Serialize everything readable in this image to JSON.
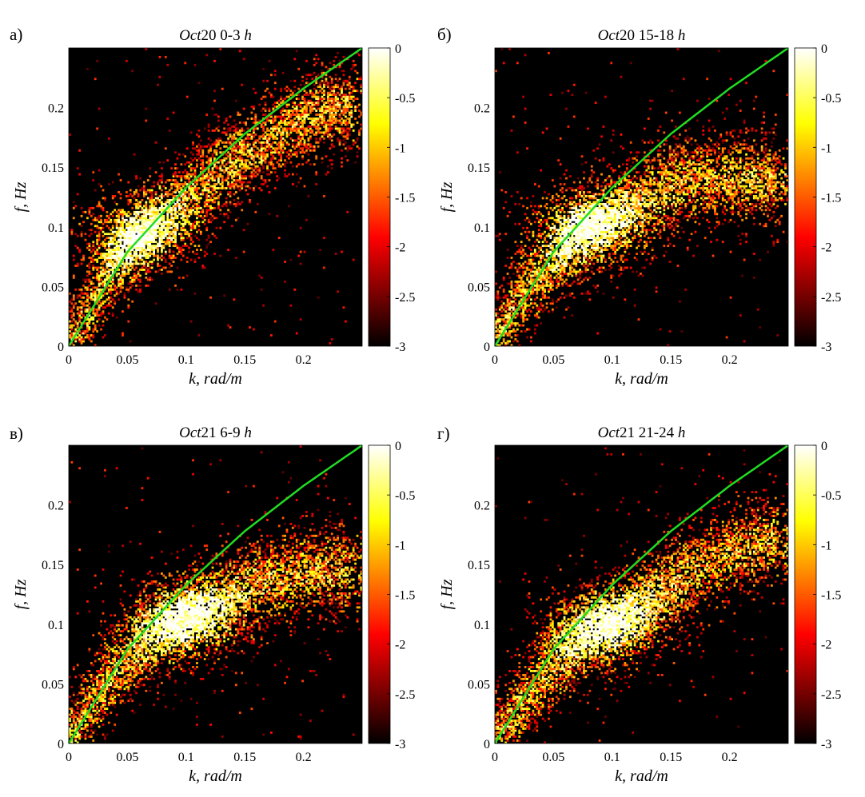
{
  "figure": {
    "panels": [
      {
        "letter": "а)",
        "title": "Oct20 0-3 h",
        "title_parts": {
          "italic1": "Oct",
          "roman": "20 0-3 ",
          "italic2": "h"
        },
        "xlabel": "k, rad/m",
        "ylabel": "f, Hz",
        "xticks": [
          "0",
          "0.05",
          "0.1",
          "0.15",
          "0.2"
        ],
        "yticks": [
          "0",
          "0.05",
          "0.1",
          "0.15",
          "0.2"
        ],
        "colorbar_ticks": [
          "0",
          "-0.5",
          "-1",
          "-1.5",
          "-2",
          "-2.5",
          "-3"
        ]
      },
      {
        "letter": "б)",
        "title": "Oct20 15-18 h",
        "title_parts": {
          "italic1": "Oct",
          "roman": "20 15-18 ",
          "italic2": "h"
        },
        "xlabel": "k, rad/m",
        "ylabel": "f, Hz",
        "xticks": [
          "0",
          "0.05",
          "0.1",
          "0.15",
          "0.2"
        ],
        "yticks": [
          "0",
          "0.05",
          "0.1",
          "0.15",
          "0.2"
        ],
        "colorbar_ticks": [
          "0",
          "-0.5",
          "-1",
          "-1.5",
          "-2",
          "-2.5",
          "-3"
        ]
      },
      {
        "letter": "в)",
        "title": "Oct21 6-9 h",
        "title_parts": {
          "italic1": "Oct",
          "roman": "21 6-9 ",
          "italic2": "h"
        },
        "xlabel": "k, rad/m",
        "ylabel": "f, Hz",
        "xticks": [
          "0",
          "0.05",
          "0.1",
          "0.15",
          "0.2"
        ],
        "yticks": [
          "0",
          "0.05",
          "0.1",
          "0.15",
          "0.2"
        ],
        "colorbar_ticks": [
          "0",
          "-0.5",
          "-1",
          "-1.5",
          "-2",
          "-2.5",
          "-3"
        ]
      },
      {
        "letter": "г)",
        "title": "Oct21 21-24 h",
        "title_parts": {
          "italic1": "Oct",
          "roman": "21 21-24 ",
          "italic2": "h"
        },
        "xlabel": "k, rad/m",
        "ylabel": "f, Hz",
        "xticks": [
          "0",
          "0.05",
          "0.1",
          "0.15",
          "0.2"
        ],
        "yticks": [
          "0",
          "0.05",
          "0.1",
          "0.15",
          "0.2"
        ],
        "colorbar_ticks": [
          "0",
          "-0.5",
          "-1",
          "-1.5",
          "-2",
          "-2.5",
          "-3"
        ]
      }
    ]
  },
  "chart_data": [
    {
      "type": "heatmap",
      "title": "Oct20 0-3 h",
      "xlabel": "k, rad/m",
      "ylabel": "f, Hz",
      "xlim": [
        0,
        0.25
      ],
      "ylim": [
        0,
        0.25
      ],
      "colorbar": {
        "range": [
          -3,
          0
        ],
        "colormap": "hot",
        "ticks": [
          0,
          -0.5,
          -1,
          -1.5,
          -2,
          -2.5,
          -3
        ]
      },
      "background_color": "#000000",
      "energy_ridge": {
        "x": [
          0.005,
          0.02,
          0.04,
          0.06,
          0.08,
          0.12,
          0.18,
          0.22
        ],
        "y": [
          0.005,
          0.035,
          0.07,
          0.09,
          0.11,
          0.14,
          0.18,
          0.2
        ]
      },
      "peak": {
        "x": 0.055,
        "y": 0.095
      },
      "dispersion_curve": {
        "name": "",
        "color": "#22dd22",
        "x": [
          0,
          0.05,
          0.1,
          0.15,
          0.2,
          0.25
        ],
        "y": [
          0,
          0.079,
          0.133,
          0.178,
          0.216,
          0.25
        ]
      }
    },
    {
      "type": "heatmap",
      "title": "Oct20 15-18 h",
      "xlabel": "k, rad/m",
      "ylabel": "f, Hz",
      "xlim": [
        0,
        0.25
      ],
      "ylim": [
        0,
        0.25
      ],
      "colorbar": {
        "range": [
          -3,
          0
        ],
        "colormap": "hot",
        "ticks": [
          0,
          -0.5,
          -1,
          -1.5,
          -2,
          -2.5,
          -3
        ]
      },
      "background_color": "#000000",
      "energy_ridge": {
        "x": [
          0.005,
          0.02,
          0.04,
          0.06,
          0.08,
          0.1,
          0.13,
          0.16
        ],
        "y": [
          0.01,
          0.04,
          0.06,
          0.08,
          0.1,
          0.11,
          0.125,
          0.14
        ]
      },
      "peak": {
        "x": 0.075,
        "y": 0.1
      },
      "dispersion_curve": {
        "name": "",
        "color": "#22dd22",
        "x": [
          0,
          0.05,
          0.1,
          0.15,
          0.2,
          0.25
        ],
        "y": [
          0,
          0.079,
          0.133,
          0.178,
          0.216,
          0.25
        ]
      }
    },
    {
      "type": "heatmap",
      "title": "Oct21 6-9 h",
      "xlabel": "k, rad/m",
      "ylabel": "f, Hz",
      "xlim": [
        0,
        0.25
      ],
      "ylim": [
        0,
        0.25
      ],
      "colorbar": {
        "range": [
          -3,
          0
        ],
        "colormap": "hot",
        "ticks": [
          0,
          -0.5,
          -1,
          -1.5,
          -2,
          -2.5,
          -3
        ]
      },
      "background_color": "#000000",
      "energy_ridge": {
        "x": [
          0.005,
          0.02,
          0.04,
          0.06,
          0.08,
          0.1,
          0.13,
          0.16,
          0.2
        ],
        "y": [
          0.01,
          0.035,
          0.06,
          0.08,
          0.095,
          0.105,
          0.12,
          0.135,
          0.145
        ]
      },
      "peak": {
        "x": 0.1,
        "y": 0.105
      },
      "dispersion_curve": {
        "name": "",
        "color": "#22dd22",
        "x": [
          0,
          0.05,
          0.1,
          0.15,
          0.2,
          0.25
        ],
        "y": [
          0,
          0.079,
          0.133,
          0.178,
          0.216,
          0.25
        ]
      }
    },
    {
      "type": "heatmap",
      "title": "Oct21 21-24 h",
      "xlabel": "k, rad/m",
      "ylabel": "f, Hz",
      "xlim": [
        0,
        0.25
      ],
      "ylim": [
        0,
        0.25
      ],
      "colorbar": {
        "range": [
          -3,
          0
        ],
        "colormap": "hot",
        "ticks": [
          0,
          -0.5,
          -1,
          -1.5,
          -2,
          -2.5,
          -3
        ]
      },
      "background_color": "#000000",
      "energy_ridge": {
        "x": [
          0.005,
          0.02,
          0.04,
          0.06,
          0.08,
          0.1,
          0.13,
          0.16,
          0.2,
          0.24
        ],
        "y": [
          0.005,
          0.03,
          0.055,
          0.075,
          0.09,
          0.1,
          0.12,
          0.14,
          0.16,
          0.17
        ]
      },
      "peak": {
        "x": 0.095,
        "y": 0.1
      },
      "dispersion_curve": {
        "name": "",
        "color": "#22dd22",
        "x": [
          0,
          0.05,
          0.1,
          0.15,
          0.2,
          0.25
        ],
        "y": [
          0,
          0.079,
          0.133,
          0.178,
          0.216,
          0.25
        ]
      }
    }
  ]
}
